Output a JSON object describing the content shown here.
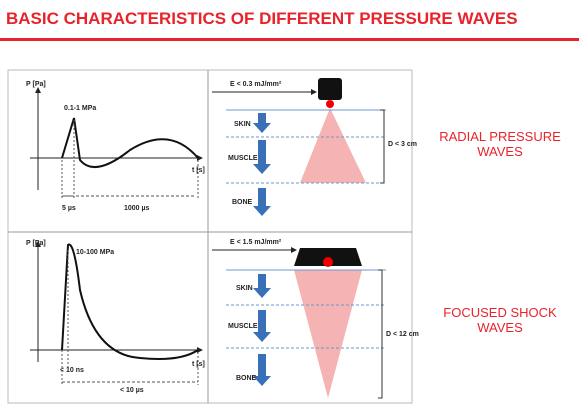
{
  "header": {
    "title": "BASIC CHARACTERISTICS OF DIFFERENT PRESSURE WAVES"
  },
  "panels": [
    {
      "label": "RADIAL PRESSURE WAVES",
      "y_axis": "P [Pa]",
      "x_axis": "t [s]",
      "peak": "0.1-1 MPa",
      "rise_time": "5 µs",
      "duration": "1000 µs",
      "energy": "E < 0.3 mJ/mm²",
      "layers": [
        "SKIN",
        "MUSCLE",
        "BONE"
      ],
      "depth": "D < 3 cm"
    },
    {
      "label": "FOCUSED SHOCK WAVES",
      "y_axis": "P [Pa]",
      "x_axis": "t [s]",
      "peak": "10-100 MPa",
      "rise_time": "< 10 ns",
      "duration": "< 10 µs",
      "energy": "E < 1.5 mJ/mm²",
      "layers": [
        "SKIN",
        "MUSCLE",
        "BONE"
      ],
      "depth": "D < 12 cm"
    }
  ]
}
